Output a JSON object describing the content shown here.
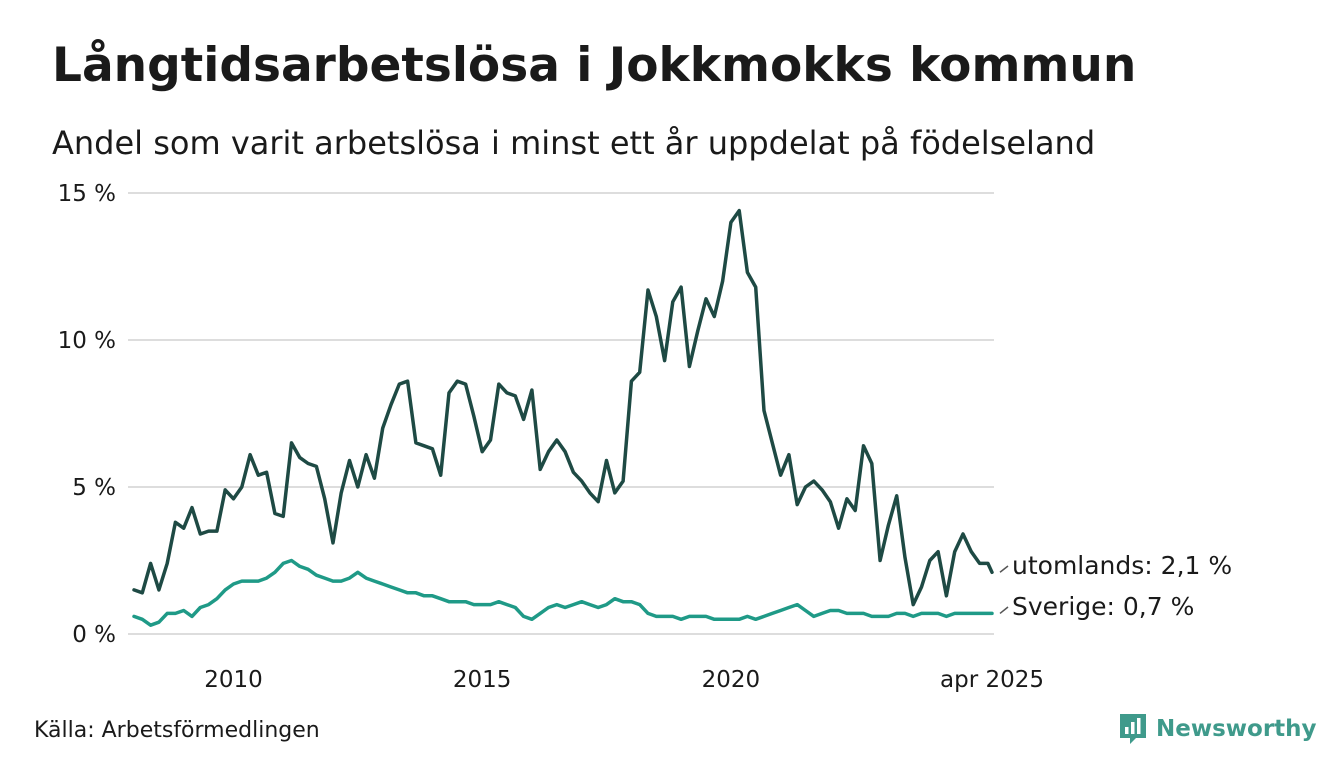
{
  "title": "Långtidsarbetslösa i Jokkmokks kommun",
  "subtitle": "Andel som varit arbetslösa i minst ett år uppdelat på födelseland",
  "source": "Källa: Arbetsförmedlingen",
  "brand": "Newsworthy",
  "colors": {
    "utomlands": "#1e4a44",
    "sverige": "#1f9a87",
    "grid": "#dddddd",
    "brand": "#3f9a8b"
  },
  "chart_data": {
    "type": "line",
    "title": "Långtidsarbetslösa i Jokkmokks kommun",
    "subtitle": "Andel som varit arbetslösa i minst ett år uppdelat på födelseland",
    "xlabel": "",
    "ylabel": "",
    "ylim": [
      0,
      15
    ],
    "yticks": [
      0,
      5,
      10,
      15
    ],
    "ytick_labels": [
      "0 %",
      "5 %",
      "10 %",
      "15 %"
    ],
    "xlim": [
      "2008-01",
      "2025-04"
    ],
    "xticks": [
      "2010-01",
      "2015-01",
      "2020-01",
      "2025-04"
    ],
    "xtick_labels": [
      "2010",
      "2015",
      "2020",
      "apr 2025"
    ],
    "grid": true,
    "legend": "end-of-line labels",
    "series": [
      {
        "name": "utomlands",
        "end_label": "utomlands: 2,1 %",
        "points": [
          [
            "2008-01",
            1.5
          ],
          [
            "2008-03",
            1.4
          ],
          [
            "2008-05",
            2.4
          ],
          [
            "2008-07",
            1.5
          ],
          [
            "2008-09",
            2.4
          ],
          [
            "2008-11",
            3.8
          ],
          [
            "2009-01",
            3.6
          ],
          [
            "2009-03",
            4.3
          ],
          [
            "2009-05",
            3.4
          ],
          [
            "2009-07",
            3.5
          ],
          [
            "2009-09",
            3.5
          ],
          [
            "2009-11",
            4.9
          ],
          [
            "2010-01",
            4.6
          ],
          [
            "2010-03",
            5.0
          ],
          [
            "2010-05",
            6.1
          ],
          [
            "2010-07",
            5.4
          ],
          [
            "2010-09",
            5.5
          ],
          [
            "2010-11",
            4.1
          ],
          [
            "2011-01",
            4.0
          ],
          [
            "2011-03",
            6.5
          ],
          [
            "2011-05",
            6.0
          ],
          [
            "2011-07",
            5.8
          ],
          [
            "2011-09",
            5.7
          ],
          [
            "2011-11",
            4.6
          ],
          [
            "2012-01",
            3.1
          ],
          [
            "2012-03",
            4.8
          ],
          [
            "2012-05",
            5.9
          ],
          [
            "2012-07",
            5.0
          ],
          [
            "2012-09",
            6.1
          ],
          [
            "2012-11",
            5.3
          ],
          [
            "2013-01",
            7.0
          ],
          [
            "2013-03",
            7.8
          ],
          [
            "2013-05",
            8.5
          ],
          [
            "2013-07",
            8.6
          ],
          [
            "2013-09",
            6.5
          ],
          [
            "2013-11",
            6.4
          ],
          [
            "2014-01",
            6.3
          ],
          [
            "2014-03",
            5.4
          ],
          [
            "2014-05",
            8.2
          ],
          [
            "2014-07",
            8.6
          ],
          [
            "2014-09",
            8.5
          ],
          [
            "2014-11",
            7.4
          ],
          [
            "2015-01",
            6.2
          ],
          [
            "2015-03",
            6.6
          ],
          [
            "2015-05",
            8.5
          ],
          [
            "2015-07",
            8.2
          ],
          [
            "2015-09",
            8.1
          ],
          [
            "2015-11",
            7.3
          ],
          [
            "2016-01",
            8.3
          ],
          [
            "2016-03",
            5.6
          ],
          [
            "2016-05",
            6.2
          ],
          [
            "2016-07",
            6.6
          ],
          [
            "2016-09",
            6.2
          ],
          [
            "2016-11",
            5.5
          ],
          [
            "2017-01",
            5.2
          ],
          [
            "2017-03",
            4.8
          ],
          [
            "2017-05",
            4.5
          ],
          [
            "2017-07",
            5.9
          ],
          [
            "2017-09",
            4.8
          ],
          [
            "2017-11",
            5.2
          ],
          [
            "2018-01",
            8.6
          ],
          [
            "2018-03",
            8.9
          ],
          [
            "2018-05",
            11.7
          ],
          [
            "2018-07",
            10.8
          ],
          [
            "2018-09",
            9.3
          ],
          [
            "2018-11",
            11.3
          ],
          [
            "2019-01",
            11.8
          ],
          [
            "2019-03",
            9.1
          ],
          [
            "2019-05",
            10.3
          ],
          [
            "2019-07",
            11.4
          ],
          [
            "2019-09",
            10.8
          ],
          [
            "2019-11",
            12.0
          ],
          [
            "2020-01",
            14.0
          ],
          [
            "2020-03",
            14.4
          ],
          [
            "2020-05",
            12.3
          ],
          [
            "2020-07",
            11.8
          ],
          [
            "2020-09",
            7.6
          ],
          [
            "2020-11",
            6.5
          ],
          [
            "2021-01",
            5.4
          ],
          [
            "2021-03",
            6.1
          ],
          [
            "2021-05",
            4.4
          ],
          [
            "2021-07",
            5.0
          ],
          [
            "2021-09",
            5.2
          ],
          [
            "2021-11",
            4.9
          ],
          [
            "2022-01",
            4.5
          ],
          [
            "2022-03",
            3.6
          ],
          [
            "2022-05",
            4.6
          ],
          [
            "2022-07",
            4.2
          ],
          [
            "2022-09",
            6.4
          ],
          [
            "2022-11",
            5.8
          ],
          [
            "2023-01",
            2.5
          ],
          [
            "2023-03",
            3.7
          ],
          [
            "2023-05",
            4.7
          ],
          [
            "2023-07",
            2.6
          ],
          [
            "2023-09",
            1.0
          ],
          [
            "2023-11",
            1.6
          ],
          [
            "2024-01",
            2.5
          ],
          [
            "2024-03",
            2.8
          ],
          [
            "2024-05",
            1.3
          ],
          [
            "2024-07",
            2.8
          ],
          [
            "2024-09",
            3.4
          ],
          [
            "2024-11",
            2.8
          ],
          [
            "2025-01",
            2.4
          ],
          [
            "2025-03",
            2.4
          ],
          [
            "2025-04",
            2.1
          ]
        ]
      },
      {
        "name": "Sverige",
        "end_label": "Sverige: 0,7 %",
        "points": [
          [
            "2008-01",
            0.6
          ],
          [
            "2008-03",
            0.5
          ],
          [
            "2008-05",
            0.3
          ],
          [
            "2008-07",
            0.4
          ],
          [
            "2008-09",
            0.7
          ],
          [
            "2008-11",
            0.7
          ],
          [
            "2009-01",
            0.8
          ],
          [
            "2009-03",
            0.6
          ],
          [
            "2009-05",
            0.9
          ],
          [
            "2009-07",
            1.0
          ],
          [
            "2009-09",
            1.2
          ],
          [
            "2009-11",
            1.5
          ],
          [
            "2010-01",
            1.7
          ],
          [
            "2010-03",
            1.8
          ],
          [
            "2010-05",
            1.8
          ],
          [
            "2010-07",
            1.8
          ],
          [
            "2010-09",
            1.9
          ],
          [
            "2010-11",
            2.1
          ],
          [
            "2011-01",
            2.4
          ],
          [
            "2011-03",
            2.5
          ],
          [
            "2011-05",
            2.3
          ],
          [
            "2011-07",
            2.2
          ],
          [
            "2011-09",
            2.0
          ],
          [
            "2011-11",
            1.9
          ],
          [
            "2012-01",
            1.8
          ],
          [
            "2012-03",
            1.8
          ],
          [
            "2012-05",
            1.9
          ],
          [
            "2012-07",
            2.1
          ],
          [
            "2012-09",
            1.9
          ],
          [
            "2012-11",
            1.8
          ],
          [
            "2013-01",
            1.7
          ],
          [
            "2013-03",
            1.6
          ],
          [
            "2013-05",
            1.5
          ],
          [
            "2013-07",
            1.4
          ],
          [
            "2013-09",
            1.4
          ],
          [
            "2013-11",
            1.3
          ],
          [
            "2014-01",
            1.3
          ],
          [
            "2014-03",
            1.2
          ],
          [
            "2014-05",
            1.1
          ],
          [
            "2014-07",
            1.1
          ],
          [
            "2014-09",
            1.1
          ],
          [
            "2014-11",
            1.0
          ],
          [
            "2015-01",
            1.0
          ],
          [
            "2015-03",
            1.0
          ],
          [
            "2015-05",
            1.1
          ],
          [
            "2015-07",
            1.0
          ],
          [
            "2015-09",
            0.9
          ],
          [
            "2015-11",
            0.6
          ],
          [
            "2016-01",
            0.5
          ],
          [
            "2016-03",
            0.7
          ],
          [
            "2016-05",
            0.9
          ],
          [
            "2016-07",
            1.0
          ],
          [
            "2016-09",
            0.9
          ],
          [
            "2016-11",
            1.0
          ],
          [
            "2017-01",
            1.1
          ],
          [
            "2017-03",
            1.0
          ],
          [
            "2017-05",
            0.9
          ],
          [
            "2017-07",
            1.0
          ],
          [
            "2017-09",
            1.2
          ],
          [
            "2017-11",
            1.1
          ],
          [
            "2018-01",
            1.1
          ],
          [
            "2018-03",
            1.0
          ],
          [
            "2018-05",
            0.7
          ],
          [
            "2018-07",
            0.6
          ],
          [
            "2018-09",
            0.6
          ],
          [
            "2018-11",
            0.6
          ],
          [
            "2019-01",
            0.5
          ],
          [
            "2019-03",
            0.6
          ],
          [
            "2019-05",
            0.6
          ],
          [
            "2019-07",
            0.6
          ],
          [
            "2019-09",
            0.5
          ],
          [
            "2019-11",
            0.5
          ],
          [
            "2020-01",
            0.5
          ],
          [
            "2020-03",
            0.5
          ],
          [
            "2020-05",
            0.6
          ],
          [
            "2020-07",
            0.5
          ],
          [
            "2020-09",
            0.6
          ],
          [
            "2020-11",
            0.7
          ],
          [
            "2021-01",
            0.8
          ],
          [
            "2021-03",
            0.9
          ],
          [
            "2021-05",
            1.0
          ],
          [
            "2021-07",
            0.8
          ],
          [
            "2021-09",
            0.6
          ],
          [
            "2021-11",
            0.7
          ],
          [
            "2022-01",
            0.8
          ],
          [
            "2022-03",
            0.8
          ],
          [
            "2022-05",
            0.7
          ],
          [
            "2022-07",
            0.7
          ],
          [
            "2022-09",
            0.7
          ],
          [
            "2022-11",
            0.6
          ],
          [
            "2023-01",
            0.6
          ],
          [
            "2023-03",
            0.6
          ],
          [
            "2023-05",
            0.7
          ],
          [
            "2023-07",
            0.7
          ],
          [
            "2023-09",
            0.6
          ],
          [
            "2023-11",
            0.7
          ],
          [
            "2024-01",
            0.7
          ],
          [
            "2024-03",
            0.7
          ],
          [
            "2024-05",
            0.6
          ],
          [
            "2024-07",
            0.7
          ],
          [
            "2024-09",
            0.7
          ],
          [
            "2024-11",
            0.7
          ],
          [
            "2025-01",
            0.7
          ],
          [
            "2025-03",
            0.7
          ],
          [
            "2025-04",
            0.7
          ]
        ]
      }
    ]
  }
}
